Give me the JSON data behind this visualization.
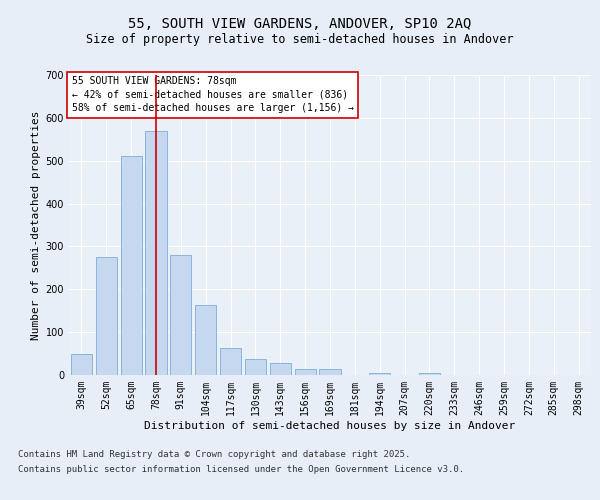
{
  "title_line1": "55, SOUTH VIEW GARDENS, ANDOVER, SP10 2AQ",
  "title_line2": "Size of property relative to semi-detached houses in Andover",
  "xlabel": "Distribution of semi-detached houses by size in Andover",
  "ylabel": "Number of semi-detached properties",
  "categories": [
    "39sqm",
    "52sqm",
    "65sqm",
    "78sqm",
    "91sqm",
    "104sqm",
    "117sqm",
    "130sqm",
    "143sqm",
    "156sqm",
    "169sqm",
    "181sqm",
    "194sqm",
    "207sqm",
    "220sqm",
    "233sqm",
    "246sqm",
    "259sqm",
    "272sqm",
    "285sqm",
    "298sqm"
  ],
  "values": [
    50,
    275,
    510,
    570,
    280,
    163,
    63,
    38,
    27,
    13,
    13,
    0,
    5,
    0,
    5,
    0,
    0,
    0,
    0,
    0,
    0
  ],
  "bar_color": "#c5d8f0",
  "bar_edge_color": "#7aaed6",
  "property_line_index": 3,
  "property_line_color": "#cc0000",
  "annotation_title": "55 SOUTH VIEW GARDENS: 78sqm",
  "annotation_line1": "← 42% of semi-detached houses are smaller (836)",
  "annotation_line2": "58% of semi-detached houses are larger (1,156) →",
  "annotation_box_color": "#ffffff",
  "annotation_border_color": "#cc0000",
  "ylim": [
    0,
    700
  ],
  "yticks": [
    0,
    100,
    200,
    300,
    400,
    500,
    600,
    700
  ],
  "footer_line1": "Contains HM Land Registry data © Crown copyright and database right 2025.",
  "footer_line2": "Contains public sector information licensed under the Open Government Licence v3.0.",
  "bg_color": "#e8eef8",
  "plot_bg_color": "#eaf0f8",
  "title1_fontsize": 10,
  "title2_fontsize": 8.5,
  "axis_label_fontsize": 8,
  "tick_fontsize": 7,
  "annotation_fontsize": 7,
  "footer_fontsize": 6.5
}
